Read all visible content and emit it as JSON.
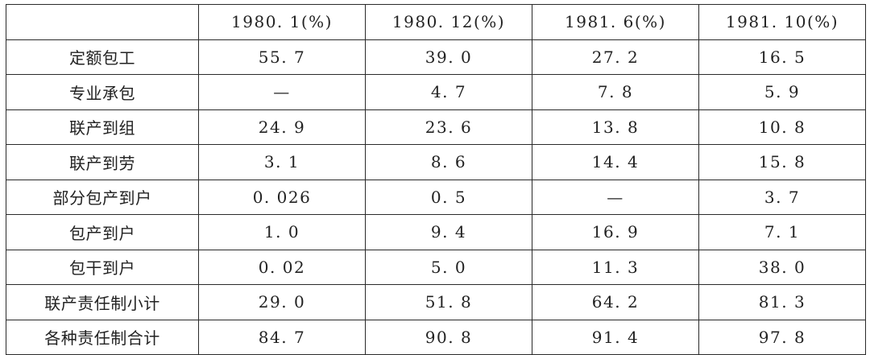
{
  "table": {
    "headers": [
      "",
      "1980. 1(%)",
      "1980. 12(%)",
      "1981. 6(%)",
      "1981. 10(%)"
    ],
    "rows": [
      {
        "label": "定额包工",
        "values": [
          "55. 7",
          "39. 0",
          "27. 2",
          "16. 5"
        ]
      },
      {
        "label": "专业承包",
        "values": [
          "—",
          "4. 7",
          "7. 8",
          "5. 9"
        ]
      },
      {
        "label": "联产到组",
        "values": [
          "24. 9",
          "23. 6",
          "13. 8",
          "10. 8"
        ]
      },
      {
        "label": "联产到劳",
        "values": [
          "3. 1",
          "8. 6",
          "14. 4",
          "15. 8"
        ]
      },
      {
        "label": "部分包产到户",
        "values": [
          "0. 026",
          "0. 5",
          "—",
          "3. 7"
        ]
      },
      {
        "label": "包产到户",
        "values": [
          "1. 0",
          "9. 4",
          "16. 9",
          "7. 1"
        ]
      },
      {
        "label": "包干到户",
        "values": [
          "0. 02",
          "5. 0",
          "11. 3",
          "38. 0"
        ]
      },
      {
        "label": "联产责任制小计",
        "values": [
          "29. 0",
          "51. 8",
          "64. 2",
          "81. 3"
        ]
      },
      {
        "label": "各种责任制合计",
        "values": [
          "84. 7",
          "90. 8",
          "91. 4",
          "97. 8"
        ]
      }
    ]
  }
}
